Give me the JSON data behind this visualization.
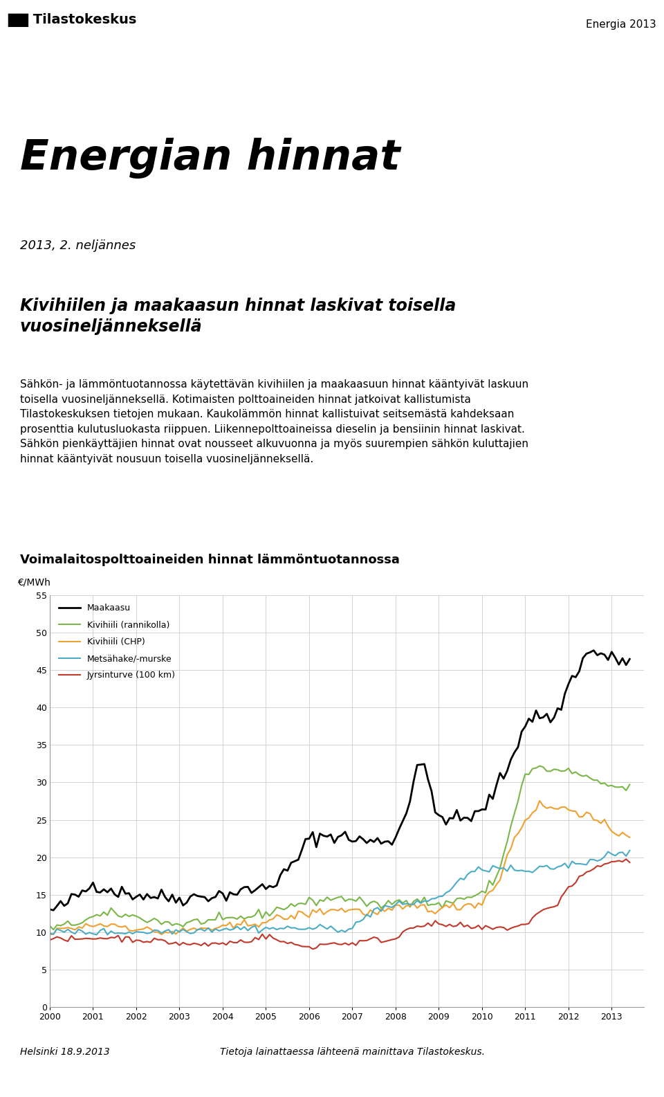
{
  "title_main": "Energian hinnat",
  "subtitle": "2013, 2. neljännes",
  "header_right": "Energia 2013",
  "header_left_line1": "Tilastokeskus",
  "paragraph1_line1": "Kivihiilen ja maakaasun hinnat laskivat toisella",
  "paragraph1_line2": "vuosineljänneksellä",
  "body_text": "Sähkön- ja lämmöntuotannossa käytettävän kivihiilen ja maakaasuun hinnat kääntyivät laskuun\ntoisella vuosineljänneksellä. Kotimaisten polttoaineiden hinnat jatkoivat kallistumista\nTilastokeskuksen tietojen mukaan. Kaukolammön hinnat kallistuivat seitsemästä kahdeksaan\nprosenttia kulutusluokasta riippuen. Liikennepolttoaineissa dieselin ja bensiinin hinnat laskivat.\nSähkön pienkäyttäjien hinnat ovat nousseet alkuvuonna ja myös suurempien sähkön kuluttajien\nhinnat kääntyivät nousuun toisella vuosineljänneksellä.",
  "chart_title": "Voimalaitospolttoaineiden hinnat lämmöntuotannossa",
  "ylabel": "€/MWh",
  "ylim": [
    0,
    55
  ],
  "yticks": [
    0,
    5,
    10,
    15,
    20,
    25,
    30,
    35,
    40,
    45,
    50,
    55
  ],
  "footer_left": "Helsinki 18.9.2013",
  "footer_right": "Tietoja lainattaessa lähteenä mainittava Tilastokeskus.",
  "series": [
    {
      "name": "Maakaasu",
      "color": "#000000",
      "linewidth": 2.0
    },
    {
      "name": "Kivihiili (rannikolla)",
      "color": "#7ab648",
      "linewidth": 1.5
    },
    {
      "name": "Kivihiili (CHP)",
      "color": "#f0a030",
      "linewidth": 1.5
    },
    {
      "name": "Metsähake/-murske",
      "color": "#4bacc6",
      "linewidth": 1.5
    },
    {
      "name": "Jyrsinturve (100 km)",
      "color": "#c0392b",
      "linewidth": 1.5
    }
  ],
  "background_color": "#ffffff",
  "grid_color": "#cccccc"
}
